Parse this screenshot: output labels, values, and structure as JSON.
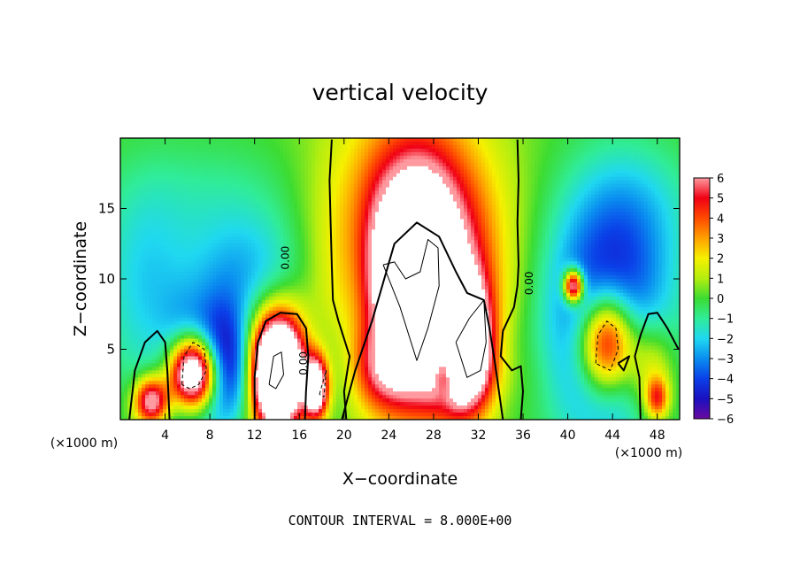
{
  "chart_data": {
    "type": "heatmap",
    "title": "vertical velocity",
    "xlabel": "X−coordinate",
    "ylabel": "Z−coordinate",
    "x_unit_label": "(×1000 m)",
    "x_unit_label_right": "(×1000 m)",
    "xlim": [
      0,
      50
    ],
    "ylim": [
      0,
      20
    ],
    "x_ticks": [
      4,
      8,
      12,
      16,
      20,
      24,
      28,
      32,
      36,
      40,
      44,
      48
    ],
    "y_ticks": [
      5,
      10,
      15
    ],
    "colorbar": {
      "range": [
        -6,
        6
      ],
      "labels": [
        "6",
        "5",
        "4",
        "3",
        "2",
        "1",
        "0",
        "−1",
        "−2",
        "−3",
        "−4",
        "−5",
        "−6"
      ],
      "stops": [
        {
          "v": -6,
          "color": "#6a0aa0"
        },
        {
          "v": -5,
          "color": "#1a10c0"
        },
        {
          "v": -4,
          "color": "#0a40e8"
        },
        {
          "v": -3,
          "color": "#0a8ef0"
        },
        {
          "v": -2,
          "color": "#20d8f0"
        },
        {
          "v": -1,
          "color": "#30ec98"
        },
        {
          "v": 0,
          "color": "#3cdc32"
        },
        {
          "v": 1,
          "color": "#b4ee10"
        },
        {
          "v": 2,
          "color": "#f6f000"
        },
        {
          "v": 3,
          "color": "#ffa000"
        },
        {
          "v": 4,
          "color": "#ff4a00"
        },
        {
          "v": 5,
          "color": "#f00014"
        },
        {
          "v": 6,
          "color": "#ff9aa0"
        }
      ]
    },
    "features": [
      {
        "x": 2.8,
        "z": 1.3,
        "sx": 1.1,
        "sz": 1.2,
        "amp": 7.5
      },
      {
        "x": 3.5,
        "z": 4.0,
        "sx": 1.5,
        "sz": 2.5,
        "amp": 1.2
      },
      {
        "x": 6.5,
        "z": 3.5,
        "sx": 2.8,
        "sz": 3.2,
        "amp": -5.0
      },
      {
        "x": 6.5,
        "z": 3.3,
        "sx": 1.5,
        "sz": 1.8,
        "amp": 14.0
      },
      {
        "x": 9.5,
        "z": 4.5,
        "sx": 1.6,
        "sz": 3.0,
        "amp": -3.0
      },
      {
        "x": 14.0,
        "z": 3.3,
        "sx": 1.6,
        "sz": 2.6,
        "amp": 14.0
      },
      {
        "x": 14.0,
        "z": 3.5,
        "sx": 2.4,
        "sz": 3.2,
        "amp": 3.0
      },
      {
        "x": 17.5,
        "z": 2.3,
        "sx": 0.8,
        "sz": 1.6,
        "amp": 10.0
      },
      {
        "x": 17.5,
        "z": 3.0,
        "sx": 1.7,
        "sz": 2.8,
        "amp": -2.5
      },
      {
        "x": 11.5,
        "z": 3.0,
        "sx": 1.5,
        "sz": 2.5,
        "amp": -2.0
      },
      {
        "x": 26.0,
        "z": 12.0,
        "sx": 5.2,
        "sz": 6.8,
        "amp": 6.0
      },
      {
        "x": 26.5,
        "z": 10.0,
        "sx": 2.5,
        "sz": 5.0,
        "amp": 7.0
      },
      {
        "x": 30.8,
        "z": 5.5,
        "sx": 1.6,
        "sz": 3.0,
        "amp": 9.0
      },
      {
        "x": 28.5,
        "z": 8.5,
        "sx": 3.5,
        "sz": 6.0,
        "amp": 2.0
      },
      {
        "x": 23.5,
        "z": 3.5,
        "sx": 2.0,
        "sz": 2.0,
        "amp": 3.0
      },
      {
        "x": 31.0,
        "z": 3.0,
        "sx": 3.5,
        "sz": 2.0,
        "amp": 2.0
      },
      {
        "x": 29.0,
        "z": 3.5,
        "sx": 0.7,
        "sz": 1.2,
        "amp": -5.0
      },
      {
        "x": 21.0,
        "z": 9.0,
        "sx": 1.2,
        "sz": 5.0,
        "amp": -1.0
      },
      {
        "x": 11.5,
        "z": 10.5,
        "sx": 4.0,
        "sz": 3.0,
        "amp": -2.5
      },
      {
        "x": 2.0,
        "z": 10.0,
        "sx": 3.0,
        "sz": 5.0,
        "amp": -2.0
      },
      {
        "x": 43.5,
        "z": 7.0,
        "sx": 4.0,
        "sz": 6.0,
        "amp": -5.5
      },
      {
        "x": 43.5,
        "z": 5.5,
        "sx": 1.8,
        "sz": 2.5,
        "amp": 9.0
      },
      {
        "x": 40.5,
        "z": 9.5,
        "sx": 0.6,
        "sz": 0.8,
        "amp": 9.0
      },
      {
        "x": 47.5,
        "z": 3.5,
        "sx": 1.5,
        "sz": 2.5,
        "amp": 3.5
      },
      {
        "x": 48.0,
        "z": 1.5,
        "sx": 0.7,
        "sz": 1.0,
        "amp": 4.0
      },
      {
        "x": 46.0,
        "z": 15.0,
        "sx": 4.0,
        "sz": 3.5,
        "amp": -1.5
      },
      {
        "x": 34.5,
        "z": 3.0,
        "sx": 1.5,
        "sz": 2.5,
        "amp": -1.0
      },
      {
        "x": 9.0,
        "z": 16.0,
        "sx": 6.0,
        "sz": 3.0,
        "amp": -1.0
      }
    ],
    "contour_label": "0.00",
    "contour_label_points": [
      [
        14.8,
        11.5
      ],
      [
        16.4,
        4.0
      ],
      [
        36.6,
        9.7
      ]
    ],
    "zero_contours": [
      [
        [
          18.9,
          19.9
        ],
        [
          18.7,
          17.0
        ],
        [
          18.8,
          14.0
        ],
        [
          18.9,
          11.0
        ],
        [
          19.0,
          8.5
        ],
        [
          19.5,
          7.0
        ],
        [
          20.5,
          4.5
        ],
        [
          20.0,
          2.0
        ],
        [
          20.2,
          0.0
        ]
      ],
      [
        [
          35.5,
          19.9
        ],
        [
          35.6,
          17.0
        ],
        [
          35.5,
          14.0
        ],
        [
          35.6,
          11.0
        ],
        [
          35.5,
          9.5
        ],
        [
          35.2,
          8.0
        ],
        [
          34.2,
          6.3
        ],
        [
          34.0,
          4.5
        ],
        [
          35.0,
          3.5
        ],
        [
          35.8,
          3.8
        ],
        [
          36.0,
          2.0
        ],
        [
          35.8,
          0.0
        ]
      ],
      [
        [
          0.8,
          0.0
        ],
        [
          1.3,
          3.5
        ],
        [
          2.2,
          5.5
        ],
        [
          3.3,
          6.3
        ],
        [
          4.0,
          5.5
        ],
        [
          4.2,
          3.5
        ],
        [
          4.4,
          0.0
        ]
      ],
      [
        [
          12.0,
          0.0
        ],
        [
          12.0,
          3.0
        ],
        [
          12.3,
          5.5
        ],
        [
          13.0,
          7.0
        ],
        [
          14.3,
          7.6
        ],
        [
          15.8,
          7.5
        ],
        [
          16.6,
          6.5
        ],
        [
          16.8,
          4.5
        ],
        [
          16.6,
          2.0
        ],
        [
          16.5,
          0.0
        ]
      ],
      [
        [
          19.8,
          0.0
        ],
        [
          21.0,
          3.5
        ],
        [
          22.5,
          7.0
        ],
        [
          24.5,
          12.5
        ],
        [
          26.5,
          14.0
        ],
        [
          28.5,
          13.0
        ],
        [
          30.0,
          10.5
        ],
        [
          31.0,
          9.0
        ],
        [
          32.5,
          8.5
        ],
        [
          33.0,
          6.5
        ],
        [
          33.5,
          4.0
        ],
        [
          34.2,
          0.0
        ]
      ],
      [
        [
          46.5,
          0.0
        ],
        [
          46.4,
          3.0
        ],
        [
          46.0,
          4.5
        ],
        [
          46.5,
          6.0
        ],
        [
          47.2,
          7.5
        ],
        [
          48.0,
          7.6
        ],
        [
          48.9,
          6.5
        ],
        [
          49.9,
          5.0
        ]
      ],
      [
        [
          44.5,
          4.0
        ],
        [
          45.5,
          4.5
        ],
        [
          45.0,
          3.5
        ],
        [
          44.5,
          4.0
        ]
      ]
    ],
    "positive_contours": [
      [
        [
          23.5,
          11.0
        ],
        [
          25.0,
          8.0
        ],
        [
          26.5,
          4.2
        ],
        [
          27.5,
          6.5
        ],
        [
          28.5,
          9.5
        ],
        [
          28.4,
          12.2
        ],
        [
          27.5,
          12.8
        ],
        [
          26.8,
          10.5
        ],
        [
          25.5,
          10.0
        ],
        [
          24.5,
          11.2
        ],
        [
          23.5,
          11.0
        ]
      ],
      [
        [
          30.0,
          5.5
        ],
        [
          31.2,
          7.2
        ],
        [
          32.5,
          8.5
        ],
        [
          32.7,
          5.5
        ],
        [
          32.2,
          3.5
        ],
        [
          31.0,
          3.0
        ],
        [
          30.0,
          5.5
        ]
      ],
      [
        [
          13.3,
          2.5
        ],
        [
          13.7,
          4.5
        ],
        [
          14.4,
          4.8
        ],
        [
          14.6,
          3.2
        ],
        [
          13.9,
          2.2
        ],
        [
          13.3,
          2.5
        ]
      ]
    ],
    "negative_contours": [
      [
        [
          5.5,
          2.5
        ],
        [
          5.7,
          4.5
        ],
        [
          6.5,
          5.5
        ],
        [
          7.5,
          5.0
        ],
        [
          7.7,
          3.5
        ],
        [
          7.0,
          2.5
        ],
        [
          6.2,
          2.2
        ],
        [
          5.5,
          2.5
        ]
      ],
      [
        [
          42.5,
          4.0
        ],
        [
          42.7,
          6.0
        ],
        [
          43.5,
          7.0
        ],
        [
          44.3,
          6.5
        ],
        [
          44.5,
          5.0
        ],
        [
          43.8,
          3.5
        ],
        [
          42.5,
          4.0
        ]
      ],
      [
        [
          17.8,
          1.8
        ],
        [
          18.4,
          3.5
        ],
        [
          18.2,
          1.6
        ],
        [
          17.8,
          1.8
        ]
      ]
    ],
    "annotation": "CONTOUR INTERVAL = 8.000E+00"
  }
}
